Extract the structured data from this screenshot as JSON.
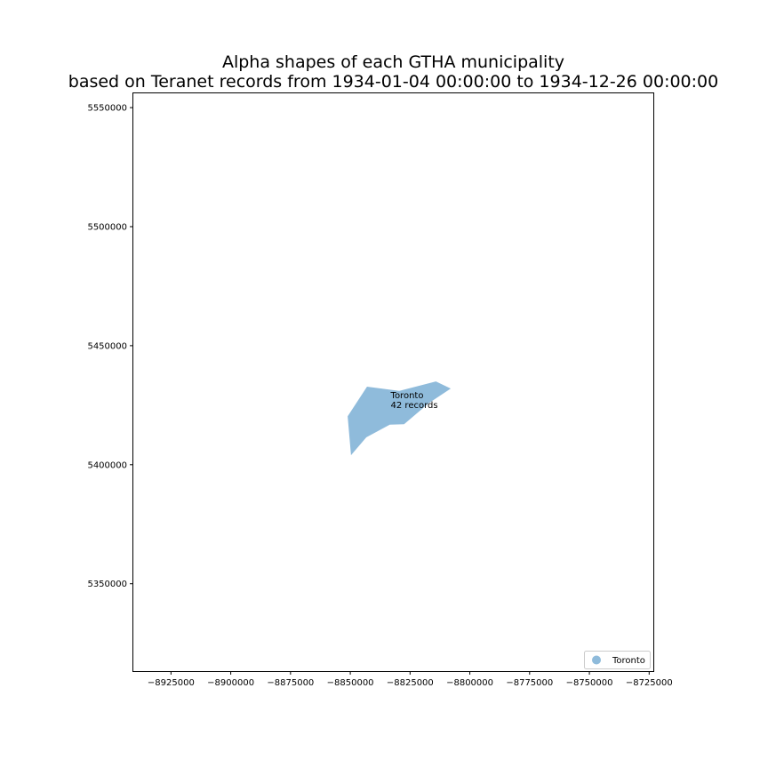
{
  "chart_data": {
    "type": "map",
    "title_line1": "Alpha shapes of each GTHA municipality",
    "title_line2": "based on Teranet records from 1934-01-04 00:00:00 to 1934-12-26 00:00:00",
    "xlim": [
      -8940750,
      -8723250
    ],
    "ylim": [
      5313300,
      5556000
    ],
    "x_ticks": [
      {
        "value": -8925000,
        "label": "−8925000"
      },
      {
        "value": -8900000,
        "label": "−8900000"
      },
      {
        "value": -8875000,
        "label": "−8875000"
      },
      {
        "value": -8850000,
        "label": "−8850000"
      },
      {
        "value": -8825000,
        "label": "−8825000"
      },
      {
        "value": -8800000,
        "label": "−8800000"
      },
      {
        "value": -8775000,
        "label": "−8775000"
      },
      {
        "value": -8750000,
        "label": "−8750000"
      },
      {
        "value": -8725000,
        "label": "−8725000"
      }
    ],
    "y_ticks": [
      {
        "value": 5350000,
        "label": "5350000"
      },
      {
        "value": 5400000,
        "label": "5400000"
      },
      {
        "value": 5450000,
        "label": "5450000"
      },
      {
        "value": 5500000,
        "label": "5500000"
      },
      {
        "value": 5550000,
        "label": "5550000"
      }
    ],
    "regions": [
      {
        "name": "Toronto",
        "records_label": "42 records",
        "color": "#8fbbdb",
        "label_at": [
          -8833100,
          5427900
        ],
        "polygon": [
          [
            -8843000,
            5432800
          ],
          [
            -8829500,
            5431000
          ],
          [
            -8814200,
            5435000
          ],
          [
            -8808000,
            5432000
          ],
          [
            -8817000,
            5426000
          ],
          [
            -8827500,
            5417000
          ],
          [
            -8833500,
            5416800
          ],
          [
            -8843300,
            5411500
          ],
          [
            -8849700,
            5404000
          ],
          [
            -8851100,
            5420300
          ]
        ]
      }
    ],
    "legend": {
      "position": "lower right",
      "entries": [
        {
          "label": "Toronto",
          "color": "#8fbbdb"
        }
      ]
    }
  }
}
